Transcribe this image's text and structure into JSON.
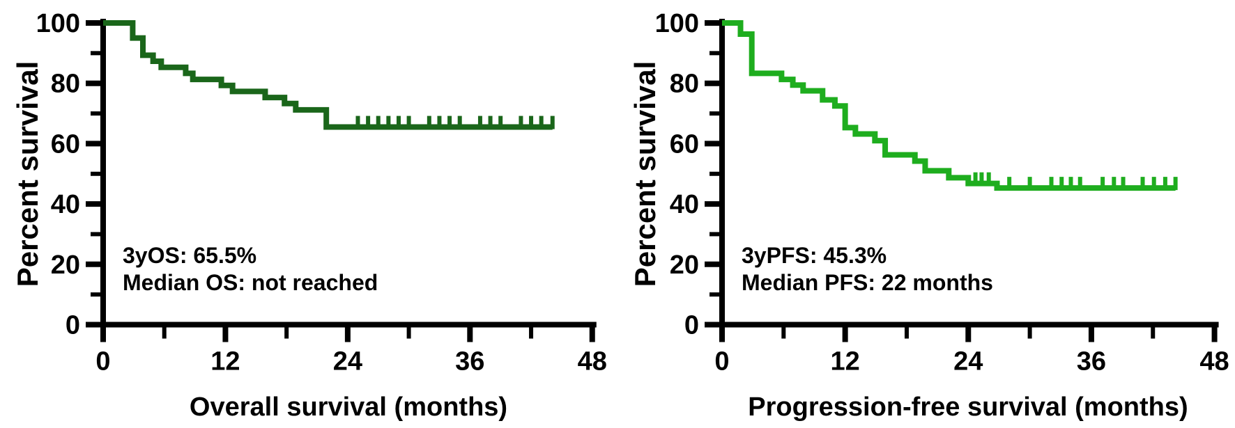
{
  "figure": {
    "background": "#ffffff",
    "axis_color": "#000000"
  },
  "chart_data": [
    {
      "type": "line",
      "subtype": "kaplan-meier-step",
      "title": "",
      "xlabel": "Overall survival (months)",
      "ylabel": "Percent survival",
      "xlim": [
        0,
        48
      ],
      "ylim": [
        0,
        100
      ],
      "xticks": [
        0,
        12,
        24,
        36,
        48
      ],
      "xticks_minor": [
        6,
        18,
        30,
        42
      ],
      "yticks": [
        0,
        20,
        40,
        60,
        80,
        100
      ],
      "yticks_minor": [
        10,
        30,
        50,
        70,
        90
      ],
      "grid": false,
      "legend": "none",
      "annotations": [
        "3yOS: 65.5%",
        "Median OS: not reached"
      ],
      "stats": {
        "three_year_rate": "65.5%",
        "median": "not reached"
      },
      "series": [
        {
          "name": "Overall survival",
          "color": "#1a661a",
          "steps": [
            [
              0,
              100
            ],
            [
              2.9,
              95
            ],
            [
              3.9,
              89.3
            ],
            [
              4.9,
              87.3
            ],
            [
              5.7,
              85.3
            ],
            [
              8.1,
              83.3
            ],
            [
              8.8,
              81.3
            ],
            [
              11.6,
              79.3
            ],
            [
              12.7,
              77.3
            ],
            [
              15.9,
              75.3
            ],
            [
              17.8,
              73.3
            ],
            [
              18.9,
              71.2
            ],
            [
              21.9,
              65.5
            ]
          ],
          "end_t": 44.1,
          "censor_marks": [
            [
              25,
              65.5
            ],
            [
              26,
              65.5
            ],
            [
              27,
              65.5
            ],
            [
              28,
              65.5
            ],
            [
              29,
              65.5
            ],
            [
              30,
              65.5
            ],
            [
              32,
              65.5
            ],
            [
              33,
              65.5
            ],
            [
              34,
              65.5
            ],
            [
              35,
              65.5
            ],
            [
              37,
              65.5
            ],
            [
              38,
              65.5
            ],
            [
              39,
              65.5
            ],
            [
              41,
              65.5
            ],
            [
              42,
              65.5
            ],
            [
              43,
              65.5
            ],
            [
              44.1,
              65.5
            ]
          ]
        }
      ]
    },
    {
      "type": "line",
      "subtype": "kaplan-meier-step",
      "title": "",
      "xlabel": "Progression-free survival (months)",
      "ylabel": "Percent survival",
      "xlim": [
        0,
        48
      ],
      "ylim": [
        0,
        100
      ],
      "xticks": [
        0,
        12,
        24,
        36,
        48
      ],
      "xticks_minor": [
        6,
        18,
        30,
        42
      ],
      "yticks": [
        0,
        20,
        40,
        60,
        80,
        100
      ],
      "yticks_minor": [
        10,
        30,
        50,
        70,
        90
      ],
      "grid": false,
      "legend": "none",
      "annotations": [
        "3yPFS: 45.3%",
        "Median PFS: 22 months"
      ],
      "stats": {
        "three_year_rate": "45.3%",
        "median": "22 months"
      },
      "series": [
        {
          "name": "Progression-free survival",
          "color": "#1ead1e",
          "steps": [
            [
              0,
              100
            ],
            [
              1.8,
              96.3
            ],
            [
              2.9,
              83.3
            ],
            [
              5.8,
              81.3
            ],
            [
              6.9,
              79.4
            ],
            [
              7.9,
              77.5
            ],
            [
              9.8,
              74.5
            ],
            [
              11,
              72.5
            ],
            [
              12,
              65.3
            ],
            [
              13,
              63.2
            ],
            [
              14.9,
              61
            ],
            [
              15.9,
              56.3
            ],
            [
              18.8,
              54.2
            ],
            [
              19.8,
              51
            ],
            [
              22.1,
              48.7
            ],
            [
              24,
              46.8
            ],
            [
              26.8,
              45.3
            ]
          ],
          "end_t": 44.2,
          "censor_marks": [
            [
              24.7,
              46.8
            ],
            [
              25.3,
              46.8
            ],
            [
              26,
              46.8
            ],
            [
              28,
              45.3
            ],
            [
              30,
              45.3
            ],
            [
              32.1,
              45.3
            ],
            [
              33.1,
              45.3
            ],
            [
              34,
              45.3
            ],
            [
              34.9,
              45.3
            ],
            [
              37.1,
              45.3
            ],
            [
              38.2,
              45.3
            ],
            [
              39.1,
              45.3
            ],
            [
              41,
              45.3
            ],
            [
              42.1,
              45.3
            ],
            [
              43.2,
              45.3
            ],
            [
              44.2,
              45.3
            ]
          ]
        }
      ]
    }
  ]
}
